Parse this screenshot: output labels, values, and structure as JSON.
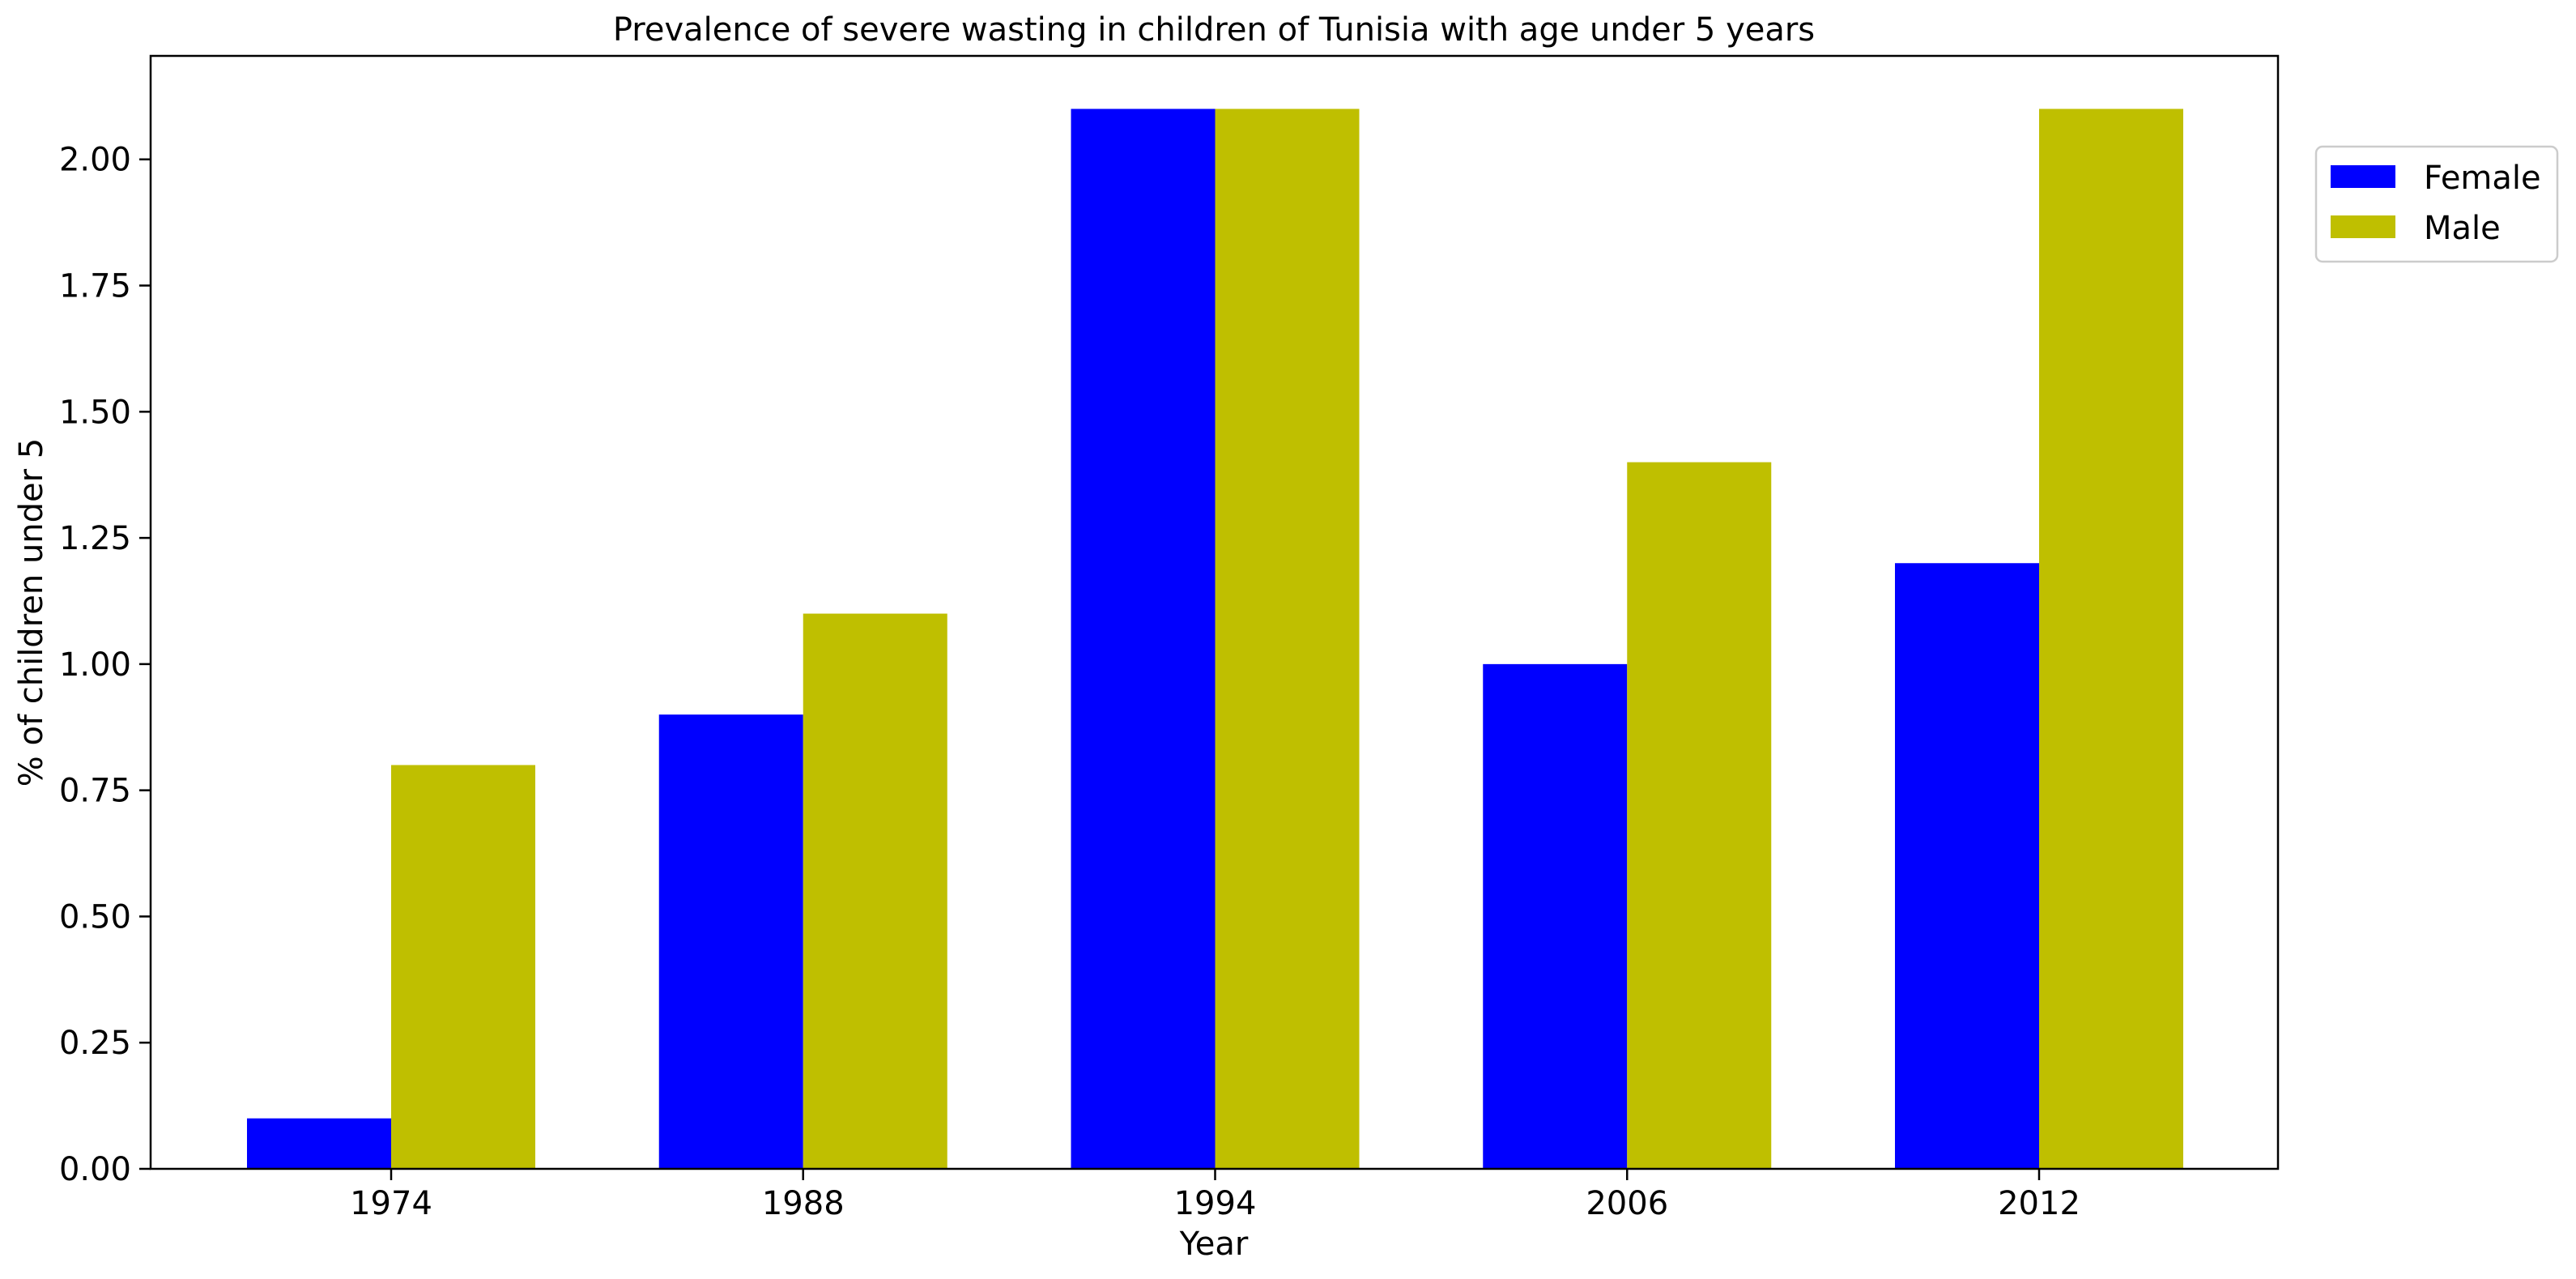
{
  "chart_data": {
    "type": "bar",
    "title": "Prevalence of severe wasting in children of Tunisia with age under 5 years",
    "xlabel": "Year",
    "ylabel": "% of children under 5",
    "categories": [
      "1974",
      "1988",
      "1994",
      "2006",
      "2012"
    ],
    "series": [
      {
        "name": "Female",
        "color": "#0000ff",
        "values": [
          0.1,
          0.9,
          2.1,
          1.0,
          1.2
        ]
      },
      {
        "name": "Male",
        "color": "#bfbf00",
        "values": [
          0.8,
          1.1,
          2.1,
          1.4,
          2.1
        ]
      }
    ],
    "ylim": [
      0,
      2.205
    ],
    "yticks": [
      0.0,
      0.25,
      0.5,
      0.75,
      1.0,
      1.25,
      1.5,
      1.75,
      2.0
    ],
    "ytick_labels": [
      "0.00",
      "0.25",
      "0.50",
      "0.75",
      "1.00",
      "1.25",
      "1.50",
      "1.75",
      "2.00"
    ],
    "grid": false,
    "legend_position": "upper right, outside plot area"
  }
}
